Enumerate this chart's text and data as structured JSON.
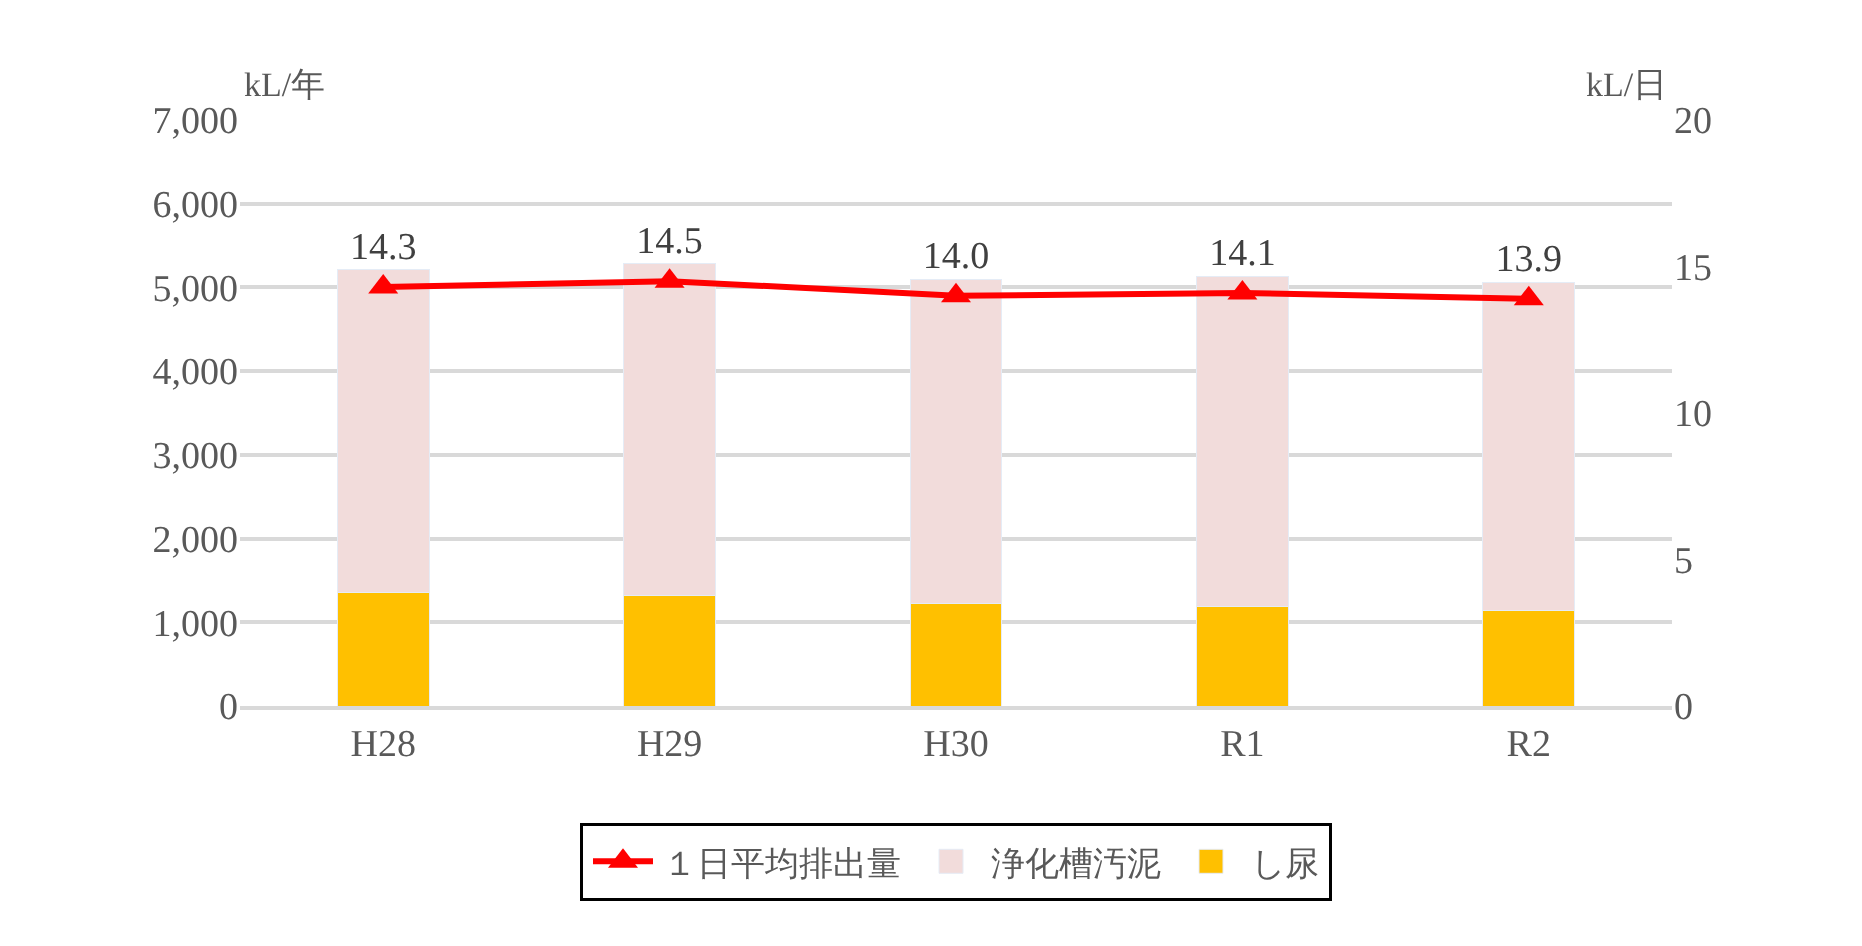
{
  "chart_data": {
    "type": "bar",
    "stacked": true,
    "categories": [
      "H28",
      "H29",
      "H30",
      "R1",
      "R2"
    ],
    "ylabel": "kL/年",
    "y2label": "kL/日",
    "series": [
      {
        "name": "し尿",
        "color": "#ffc000",
        "values": [
          1360,
          1320,
          1220,
          1190,
          1140
        ]
      },
      {
        "name": "浄化槽汚泥",
        "color": "#f2dcdb",
        "values": [
          3860,
          3960,
          3880,
          3940,
          3920
        ]
      },
      {
        "name": "１日平均排出量",
        "type": "line",
        "axis": "y2",
        "color": "#ff0000",
        "marker": "triangle",
        "values": [
          14.3,
          14.5,
          14.0,
          14.1,
          13.9
        ],
        "value_labels": [
          "14.3",
          "14.5",
          "14.0",
          "14.1",
          "13.9"
        ]
      }
    ],
    "ylim": [
      0,
      7000
    ],
    "yticks": [
      {
        "value": 0,
        "label": "0"
      },
      {
        "value": 1000,
        "label": "1,000"
      },
      {
        "value": 2000,
        "label": "2,000"
      },
      {
        "value": 3000,
        "label": "3,000"
      },
      {
        "value": 4000,
        "label": "4,000"
      },
      {
        "value": 5000,
        "label": "5,000"
      },
      {
        "value": 6000,
        "label": "6,000"
      },
      {
        "value": 7000,
        "label": "7,000"
      }
    ],
    "y2lim": [
      0,
      20
    ],
    "y2ticks": [
      0,
      5,
      10,
      15,
      20
    ],
    "grid": "y",
    "legend": "bottom"
  }
}
